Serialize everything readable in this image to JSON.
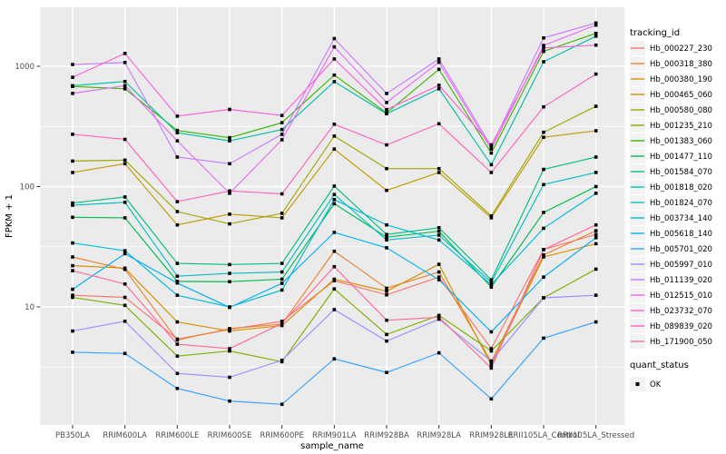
{
  "figure": {
    "x_title": "sample_name",
    "y_title": "FPKM + 1",
    "legend": {
      "tracking_title": "tracking_id",
      "quant_title": "quant_status",
      "quant_items": [
        "OK"
      ]
    },
    "colors": {
      "panel_bg": "#EBEBEB",
      "grid": "#FFFFFF",
      "point": "#000000",
      "axis_text": "#4D4D4D",
      "axis_title": "#000000",
      "key_bg": "#F2F2F2",
      "tick": "#333333"
    }
  },
  "chart_data": {
    "type": "line",
    "xlabel": "sample_name",
    "ylabel": "FPKM + 1",
    "yscale": "log10",
    "ylim": [
      1,
      3000
    ],
    "yticks": [
      10,
      100,
      1000
    ],
    "grid": true,
    "legend_position": "right",
    "point_marker": "black square (quant_status = OK)",
    "x": [
      "PB350LA",
      "RRIM600LA",
      "RRIM600LE",
      "RRIM600SE",
      "RRIM600PE",
      "RRIM901LA",
      "RRIM928BA",
      "RRIM928LA",
      "RRIM928LE",
      "RRII105LA_Control",
      "RRII105LA_Stressed"
    ],
    "series": [
      {
        "name": "Hb_000227_230",
        "color": "#F8766D",
        "values": [
          12.5,
          12,
          5.4,
          6.5,
          7.6,
          16.5,
          12.6,
          17.7,
          4.5,
          30,
          40
        ]
      },
      {
        "name": "Hb_000318_380",
        "color": "#EA8331",
        "values": [
          26,
          20.5,
          5.3,
          6.6,
          7.2,
          29,
          14.3,
          19.5,
          3.5,
          27,
          43
        ]
      },
      {
        "name": "Hb_000380_190",
        "color": "#D89000",
        "values": [
          22,
          21,
          7.5,
          6.3,
          7.0,
          17,
          13.5,
          22.6,
          3.3,
          26,
          33.5
        ]
      },
      {
        "name": "Hb_000465_060",
        "color": "#C09B00",
        "values": [
          131,
          155,
          48,
          59,
          55,
          205,
          93,
          131,
          55,
          257,
          291
        ]
      },
      {
        "name": "Hb_000580_080",
        "color": "#A3A500",
        "values": [
          163,
          166,
          62,
          49,
          60,
          263,
          141,
          141,
          57,
          283,
          465
        ]
      },
      {
        "name": "Hb_001235_210",
        "color": "#7CAE00",
        "values": [
          12,
          10.3,
          3.9,
          4.3,
          3.5,
          14.1,
          5.9,
          8.5,
          4.3,
          11.9,
          20.6
        ]
      },
      {
        "name": "Hb_001383_060",
        "color": "#39B600",
        "values": [
          680,
          650,
          293,
          255,
          340,
          845,
          410,
          944,
          190,
          1330,
          1880
        ]
      },
      {
        "name": "Hb_001477_110",
        "color": "#00BB4E",
        "values": [
          55.6,
          55,
          16.3,
          16.2,
          17,
          72,
          38,
          42.5,
          14.6,
          61,
          100
        ]
      },
      {
        "name": "Hb_001584_070",
        "color": "#00BF7D",
        "values": [
          73,
          82,
          23,
          22.5,
          23,
          101,
          40,
          45.5,
          16.8,
          139,
          176
        ]
      },
      {
        "name": "Hb_001818_020",
        "color": "#00C1A3",
        "values": [
          690,
          748,
          280,
          240,
          298,
          745,
          403,
          650,
          152,
          1090,
          1780
        ]
      },
      {
        "name": "Hb_001824_070",
        "color": "#00BFC4",
        "values": [
          70,
          74,
          18,
          19,
          19.5,
          86,
          36,
          39.5,
          16,
          104,
          131
        ]
      },
      {
        "name": "Hb_003734_140",
        "color": "#00BBDA",
        "values": [
          34,
          29.3,
          12.5,
          10,
          13.8,
          78,
          48,
          36,
          15.3,
          45,
          88
        ]
      },
      {
        "name": "Hb_005618_140",
        "color": "#00B0F6",
        "values": [
          14,
          27.7,
          15.8,
          9.9,
          15.7,
          41.6,
          31,
          16.8,
          6.2,
          17.7,
          37.6
        ]
      },
      {
        "name": "Hb_005701_020",
        "color": "#35A2FF",
        "values": [
          4.2,
          4.1,
          2.1,
          1.65,
          1.55,
          3.7,
          2.85,
          4.15,
          1.72,
          5.5,
          7.5
        ]
      },
      {
        "name": "Hb_005997_010",
        "color": "#9590FF",
        "values": [
          6.3,
          7.6,
          2.8,
          2.6,
          3.6,
          9.5,
          5.2,
          7.9,
          3.55,
          11.9,
          12.5
        ]
      },
      {
        "name": "Hb_011139_020",
        "color": "#C77CFF",
        "values": [
          1035,
          1075,
          176,
          155,
          272,
          1700,
          594,
          1150,
          215,
          1720,
          2290
        ]
      },
      {
        "name": "Hb_012515_010",
        "color": "#E76BF3",
        "values": [
          595,
          690,
          240,
          88,
          245,
          1450,
          500,
          1080,
          205,
          1490,
          2200
        ]
      },
      {
        "name": "Hb_023732_070",
        "color": "#FA62DB",
        "values": [
          810,
          1280,
          385,
          438,
          390,
          1150,
          437,
          695,
          222,
          1420,
          1500
        ]
      },
      {
        "name": "Hb_089839_020",
        "color": "#FF62BC",
        "values": [
          272,
          247,
          75,
          92,
          87,
          330,
          222,
          333,
          131,
          460,
          862
        ]
      },
      {
        "name": "Hb_171900_050",
        "color": "#FF6A98",
        "values": [
          20,
          15.5,
          4.9,
          4.5,
          7.3,
          21.6,
          7.75,
          8.2,
          3.1,
          30,
          48
        ]
      }
    ]
  }
}
